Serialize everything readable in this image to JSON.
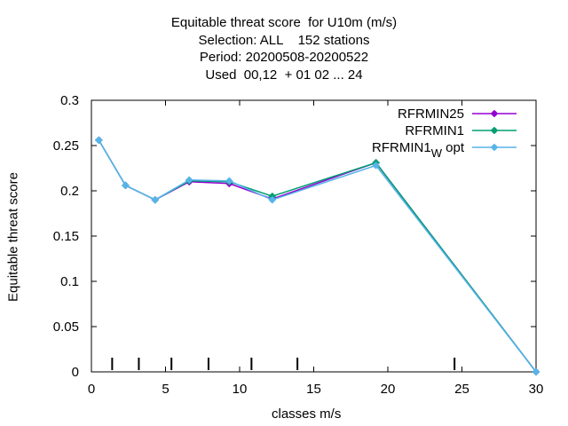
{
  "chart_data": {
    "type": "line",
    "title_lines": [
      "Equitable threat score  for U10m (m/s)",
      "Selection: ALL    152 stations",
      "Period: 20200508-20200522",
      "Used  00,12  + 01 02 ... 24"
    ],
    "xlabel": "classes m/s",
    "ylabel": "Equitable threat score",
    "xlim": [
      0,
      30
    ],
    "ylim": [
      0,
      0.3
    ],
    "xticks": [
      "0",
      "5",
      "10",
      "15",
      "20",
      "25",
      "30"
    ],
    "yticks": [
      "0",
      "0.05",
      "0.1",
      "0.15",
      "0.2",
      "0.25",
      "0.3"
    ],
    "class_markers": [
      1.4,
      3.2,
      5.4,
      7.9,
      10.8,
      13.9,
      24.5
    ],
    "legend_position": "top-right",
    "grid": false,
    "series": [
      {
        "name": "RFRMIN25",
        "color": "#9400d3",
        "x": [
          0.5,
          2.3,
          4.3,
          6.6,
          9.3,
          12.2,
          19.2,
          30
        ],
        "y": [
          0.256,
          0.206,
          0.19,
          0.21,
          0.208,
          0.191,
          0.231,
          0
        ]
      },
      {
        "name": "RFRMIN1",
        "color": "#009e73",
        "x": [
          0.5,
          2.3,
          4.3,
          6.6,
          9.3,
          12.2,
          19.2,
          30
        ],
        "y": [
          0.256,
          0.206,
          0.19,
          0.211,
          0.21,
          0.194,
          0.231,
          0
        ]
      },
      {
        "name": "RFRMIN1",
        "name_subscript": "W",
        "name_suffix": " opt",
        "color": "#56b4e9",
        "x": [
          0.5,
          2.3,
          4.3,
          6.6,
          9.3,
          12.2,
          19.2,
          30
        ],
        "y": [
          0.256,
          0.206,
          0.19,
          0.212,
          0.211,
          0.19,
          0.228,
          0
        ]
      }
    ]
  }
}
